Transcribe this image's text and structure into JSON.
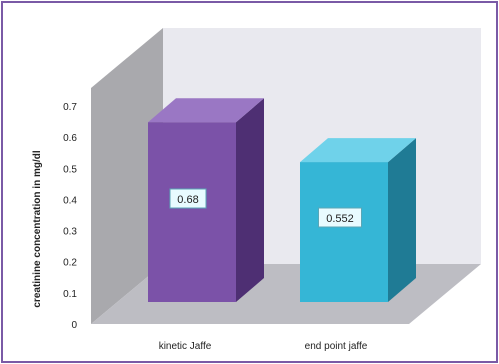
{
  "chart_data": {
    "type": "bar",
    "title": "",
    "xlabel": "",
    "ylabel": "creatinine concentration in mg/dl",
    "ylim": [
      0,
      0.7
    ],
    "y_ticks": [
      "0",
      "0.1",
      "0.2",
      "0.3",
      "0.4",
      "0.5",
      "0.6",
      "0.7"
    ],
    "categories": [
      "kinetic Jaffe",
      "end point jaffe"
    ],
    "values": [
      0.68,
      0.552
    ],
    "data_labels": [
      "0.68",
      "0.552"
    ],
    "style": "3d-columns",
    "grid": false,
    "legend": "none"
  },
  "colors": {
    "frame_border": "#7a5aa6",
    "wall_back": "#e9e9ef",
    "wall_side": "#a9a9ad",
    "floor": "#bdbdc3",
    "bar_front": [
      "#7b52a8",
      "#35b6d6"
    ],
    "bar_side": [
      "#4e2f73",
      "#1f7b95"
    ],
    "bar_top": [
      "#9a77c4",
      "#6fd2ea"
    ],
    "label_box": "#e8fbff",
    "label_border": "#5aa6b6",
    "text": "#222222"
  }
}
